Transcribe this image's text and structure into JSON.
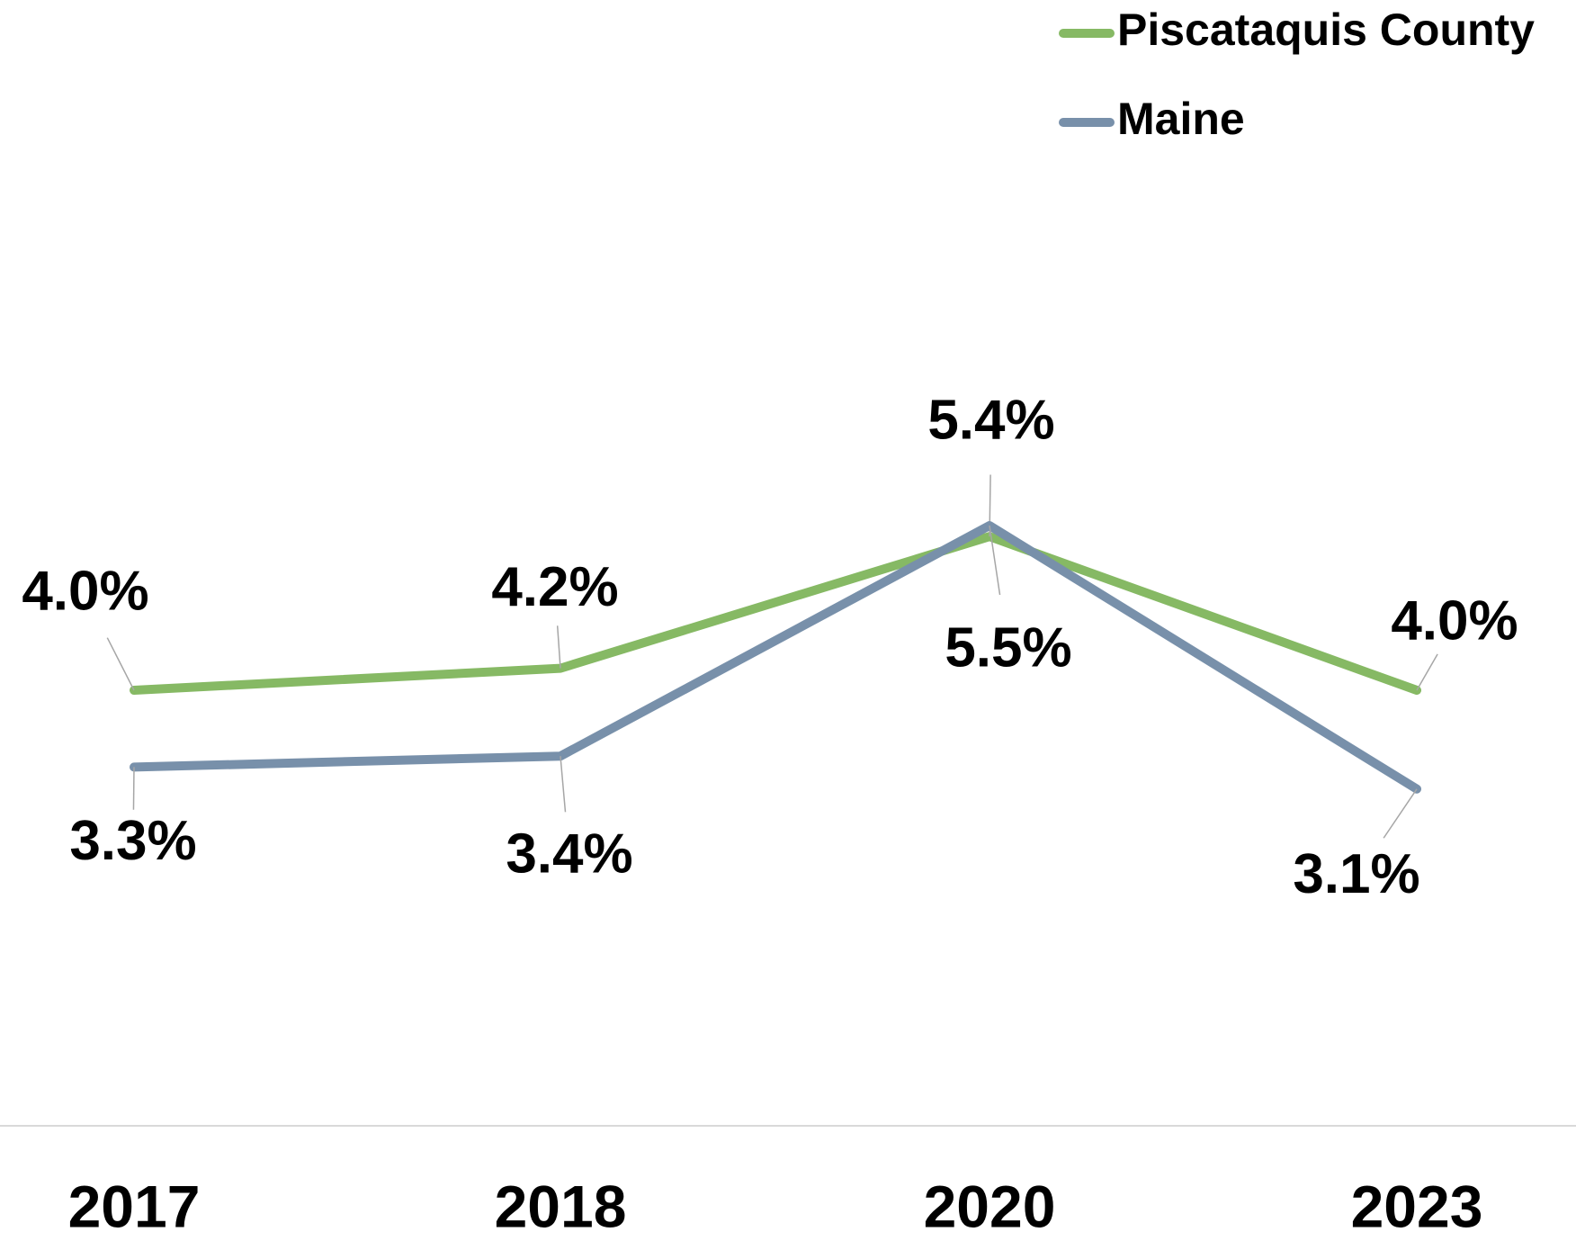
{
  "chart_data": {
    "type": "line",
    "categories": [
      "2017",
      "2018",
      "2020",
      "2023"
    ],
    "series": [
      {
        "name": "Piscataquis County",
        "color": "#86b964",
        "values": [
          4.0,
          4.2,
          5.4,
          4.0
        ],
        "value_labels": [
          "4.0%",
          "4.2%",
          "5.4%",
          "4.0%"
        ]
      },
      {
        "name": "Maine",
        "color": "#7890aa",
        "values": [
          3.3,
          3.4,
          5.5,
          3.1
        ],
        "value_labels": [
          "3.3%",
          "3.4%",
          "5.5%",
          "3.1%"
        ]
      }
    ],
    "legend": "top-right"
  }
}
